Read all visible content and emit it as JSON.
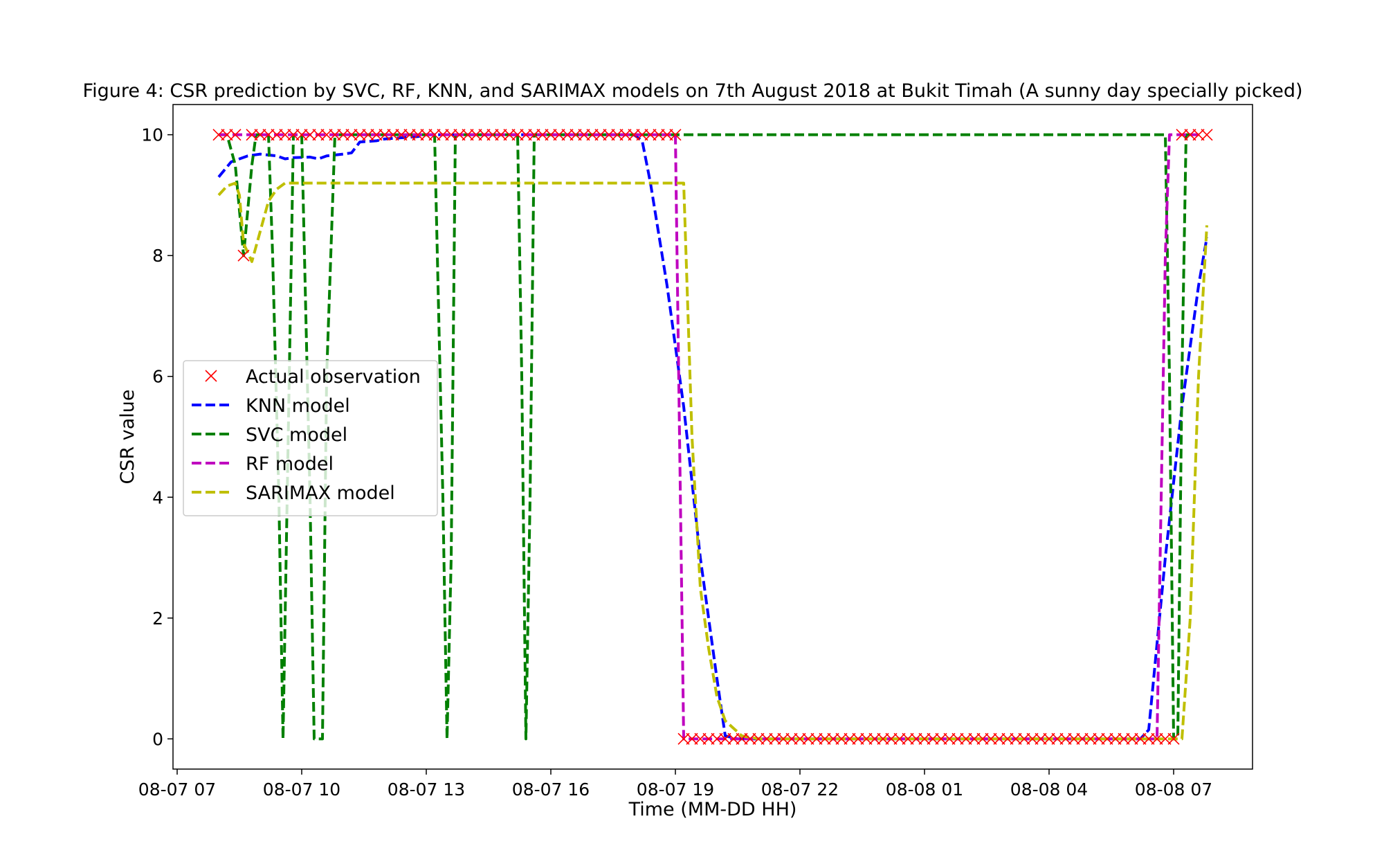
{
  "chart_data": {
    "type": "line",
    "title": "Figure 4: CSR prediction by SVC, RF, KNN, and SARIMAX models on 7th August 2018 at Bukit Timah (A sunny day specially picked)",
    "xlabel": "Time (MM-DD HH)",
    "ylabel": "CSR value",
    "x_unit": "hour",
    "x_origin_label": "08-07 00",
    "xlim": [
      6.9,
      32.9
    ],
    "ylim": [
      -0.5,
      10.5
    ],
    "x_ticks": [
      {
        "x": 7,
        "label": "08-07 07"
      },
      {
        "x": 10,
        "label": "08-07 10"
      },
      {
        "x": 13,
        "label": "08-07 13"
      },
      {
        "x": 16,
        "label": "08-07 16"
      },
      {
        "x": 19,
        "label": "08-07 19"
      },
      {
        "x": 22,
        "label": "08-07 22"
      },
      {
        "x": 25,
        "label": "08-08 01"
      },
      {
        "x": 28,
        "label": "08-08 04"
      },
      {
        "x": 31,
        "label": "08-08 07"
      }
    ],
    "y_ticks": [
      0,
      2,
      4,
      6,
      8,
      10
    ],
    "legend_position": "center-left",
    "series": [
      {
        "name": "Actual observation",
        "color": "#ff0000",
        "style": "x-marker",
        "points": [
          [
            8.0,
            10
          ],
          [
            8.2,
            10
          ],
          [
            8.4,
            10
          ],
          [
            8.6,
            8
          ],
          [
            8.8,
            10
          ],
          [
            9.0,
            10
          ],
          [
            9.2,
            10
          ],
          [
            9.4,
            10
          ],
          [
            9.6,
            10
          ],
          [
            9.8,
            10
          ],
          [
            10.0,
            10
          ],
          [
            10.2,
            10
          ],
          [
            10.4,
            10
          ],
          [
            10.6,
            10
          ],
          [
            10.8,
            10
          ],
          [
            11.0,
            10
          ],
          [
            11.2,
            10
          ],
          [
            11.4,
            10
          ],
          [
            11.6,
            10
          ],
          [
            11.8,
            10
          ],
          [
            12.0,
            10
          ],
          [
            12.2,
            10
          ],
          [
            12.4,
            10
          ],
          [
            12.6,
            10
          ],
          [
            12.8,
            10
          ],
          [
            13.0,
            10
          ],
          [
            13.2,
            10
          ],
          [
            13.4,
            10
          ],
          [
            13.6,
            10
          ],
          [
            13.8,
            10
          ],
          [
            14.0,
            10
          ],
          [
            14.2,
            10
          ],
          [
            14.4,
            10
          ],
          [
            14.6,
            10
          ],
          [
            14.8,
            10
          ],
          [
            15.0,
            10
          ],
          [
            15.2,
            10
          ],
          [
            15.4,
            10
          ],
          [
            15.6,
            10
          ],
          [
            15.8,
            10
          ],
          [
            16.0,
            10
          ],
          [
            16.2,
            10
          ],
          [
            16.4,
            10
          ],
          [
            16.6,
            10
          ],
          [
            16.8,
            10
          ],
          [
            17.0,
            10
          ],
          [
            17.2,
            10
          ],
          [
            17.4,
            10
          ],
          [
            17.6,
            10
          ],
          [
            17.8,
            10
          ],
          [
            18.0,
            10
          ],
          [
            18.2,
            10
          ],
          [
            18.4,
            10
          ],
          [
            18.6,
            10
          ],
          [
            18.8,
            10
          ],
          [
            19.0,
            10
          ],
          [
            19.2,
            0
          ],
          [
            19.4,
            0
          ],
          [
            19.6,
            0
          ],
          [
            19.8,
            0
          ],
          [
            20.0,
            0
          ],
          [
            20.2,
            0
          ],
          [
            20.4,
            0
          ],
          [
            20.6,
            0
          ],
          [
            20.8,
            0
          ],
          [
            21.0,
            0
          ],
          [
            21.2,
            0
          ],
          [
            21.4,
            0
          ],
          [
            21.6,
            0
          ],
          [
            21.8,
            0
          ],
          [
            22.0,
            0
          ],
          [
            22.2,
            0
          ],
          [
            22.4,
            0
          ],
          [
            22.6,
            0
          ],
          [
            22.8,
            0
          ],
          [
            23.0,
            0
          ],
          [
            23.2,
            0
          ],
          [
            23.4,
            0
          ],
          [
            23.6,
            0
          ],
          [
            23.8,
            0
          ],
          [
            24.0,
            0
          ],
          [
            24.2,
            0
          ],
          [
            24.4,
            0
          ],
          [
            24.6,
            0
          ],
          [
            24.8,
            0
          ],
          [
            25.0,
            0
          ],
          [
            25.2,
            0
          ],
          [
            25.4,
            0
          ],
          [
            25.6,
            0
          ],
          [
            25.8,
            0
          ],
          [
            26.0,
            0
          ],
          [
            26.2,
            0
          ],
          [
            26.4,
            0
          ],
          [
            26.6,
            0
          ],
          [
            26.8,
            0
          ],
          [
            27.0,
            0
          ],
          [
            27.2,
            0
          ],
          [
            27.4,
            0
          ],
          [
            27.6,
            0
          ],
          [
            27.8,
            0
          ],
          [
            28.0,
            0
          ],
          [
            28.2,
            0
          ],
          [
            28.4,
            0
          ],
          [
            28.6,
            0
          ],
          [
            28.8,
            0
          ],
          [
            29.0,
            0
          ],
          [
            29.2,
            0
          ],
          [
            29.4,
            0
          ],
          [
            29.6,
            0
          ],
          [
            29.8,
            0
          ],
          [
            30.0,
            0
          ],
          [
            30.2,
            0
          ],
          [
            30.4,
            0
          ],
          [
            30.6,
            0
          ],
          [
            30.8,
            0
          ],
          [
            31.0,
            0
          ],
          [
            31.2,
            10
          ],
          [
            31.4,
            10
          ],
          [
            31.6,
            10
          ],
          [
            31.8,
            10
          ]
        ]
      },
      {
        "name": "KNN model",
        "color": "#0000ff",
        "style": "dashed",
        "points": [
          [
            8.0,
            9.3
          ],
          [
            8.3,
            9.55
          ],
          [
            8.7,
            9.65
          ],
          [
            9.0,
            9.68
          ],
          [
            9.4,
            9.65
          ],
          [
            9.6,
            9.6
          ],
          [
            9.8,
            9.62
          ],
          [
            10.2,
            9.63
          ],
          [
            10.4,
            9.6
          ],
          [
            10.6,
            9.65
          ],
          [
            11.0,
            9.68
          ],
          [
            11.2,
            9.7
          ],
          [
            11.4,
            9.88
          ],
          [
            11.8,
            9.9
          ],
          [
            12.0,
            9.93
          ],
          [
            12.4,
            9.95
          ],
          [
            12.8,
            9.97
          ],
          [
            13.0,
            10
          ],
          [
            18.0,
            10
          ],
          [
            18.2,
            9.9
          ],
          [
            18.4,
            9.2
          ],
          [
            18.8,
            7.5
          ],
          [
            19.2,
            5.5
          ],
          [
            19.6,
            3.0
          ],
          [
            20.0,
            1.0
          ],
          [
            20.2,
            0.05
          ],
          [
            20.5,
            0
          ],
          [
            30.2,
            0
          ],
          [
            30.4,
            0.15
          ],
          [
            30.8,
            3.0
          ],
          [
            31.2,
            5.5
          ],
          [
            31.6,
            7.5
          ],
          [
            31.8,
            8.3
          ]
        ]
      },
      {
        "name": "SVC model",
        "color": "#008000",
        "style": "dashed",
        "points": [
          [
            8.0,
            10
          ],
          [
            8.2,
            10
          ],
          [
            8.4,
            9.5
          ],
          [
            8.6,
            8.0
          ],
          [
            8.8,
            9.5
          ],
          [
            8.9,
            10
          ],
          [
            9.0,
            10
          ],
          [
            9.2,
            10
          ],
          [
            9.3,
            8.0
          ],
          [
            9.45,
            4.0
          ],
          [
            9.55,
            0
          ],
          [
            9.6,
            2.0
          ],
          [
            9.7,
            6.0
          ],
          [
            9.8,
            10
          ],
          [
            9.9,
            10
          ],
          [
            10.0,
            10
          ],
          [
            10.2,
            4.0
          ],
          [
            10.3,
            0
          ],
          [
            10.5,
            0
          ],
          [
            10.6,
            6.0
          ],
          [
            10.8,
            10
          ],
          [
            13.2,
            10
          ],
          [
            13.4,
            4.0
          ],
          [
            13.5,
            0
          ],
          [
            13.6,
            3.0
          ],
          [
            13.7,
            10
          ],
          [
            15.2,
            10
          ],
          [
            15.3,
            6.0
          ],
          [
            15.4,
            0
          ],
          [
            15.5,
            4.0
          ],
          [
            15.6,
            10
          ],
          [
            30.8,
            10
          ],
          [
            30.9,
            6.0
          ],
          [
            31.0,
            0
          ],
          [
            31.1,
            0
          ],
          [
            31.2,
            6.0
          ],
          [
            31.3,
            10
          ],
          [
            31.4,
            10
          ]
        ]
      },
      {
        "name": "RF model",
        "color": "#bf00bf",
        "style": "dashed",
        "points": [
          [
            8.0,
            10
          ],
          [
            19.0,
            10
          ],
          [
            19.1,
            5.0
          ],
          [
            19.2,
            0
          ],
          [
            30.6,
            0
          ],
          [
            30.7,
            4.0
          ],
          [
            30.8,
            8.0
          ],
          [
            30.9,
            10
          ],
          [
            31.6,
            10
          ]
        ]
      },
      {
        "name": "SARIMAX model",
        "color": "#bfbf00",
        "style": "dashed",
        "points": [
          [
            8.0,
            9.0
          ],
          [
            8.2,
            9.15
          ],
          [
            8.4,
            9.2
          ],
          [
            8.5,
            9.0
          ],
          [
            8.6,
            8.2
          ],
          [
            8.8,
            7.9
          ],
          [
            9.0,
            8.4
          ],
          [
            9.2,
            8.9
          ],
          [
            9.4,
            9.1
          ],
          [
            9.6,
            9.2
          ],
          [
            19.2,
            9.2
          ],
          [
            19.4,
            5.0
          ],
          [
            19.6,
            2.5
          ],
          [
            19.8,
            1.5
          ],
          [
            20.0,
            0.7
          ],
          [
            20.2,
            0.3
          ],
          [
            20.6,
            0.05
          ],
          [
            21.0,
            0
          ],
          [
            31.2,
            0
          ],
          [
            31.4,
            2.0
          ],
          [
            31.6,
            6.0
          ],
          [
            31.8,
            8.5
          ]
        ]
      }
    ]
  }
}
